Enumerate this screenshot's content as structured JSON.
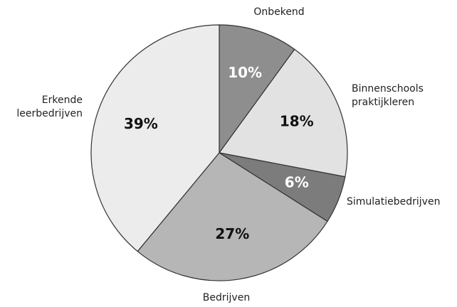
{
  "chart_data": {
    "type": "pie",
    "categories": [
      "Onbekend",
      "Binnenschools praktijkleren",
      "Simulatiebedrijven",
      "Bedrijven",
      "Erkende leerbedrijven"
    ],
    "values": [
      10,
      18,
      6,
      27,
      39
    ],
    "value_labels": [
      "10%",
      "18%",
      "6%",
      "27%",
      "39%"
    ],
    "colors": [
      "#8e8e8e",
      "#e2e2e2",
      "#7c7c7c",
      "#b6b6b6",
      "#ececec"
    ]
  }
}
